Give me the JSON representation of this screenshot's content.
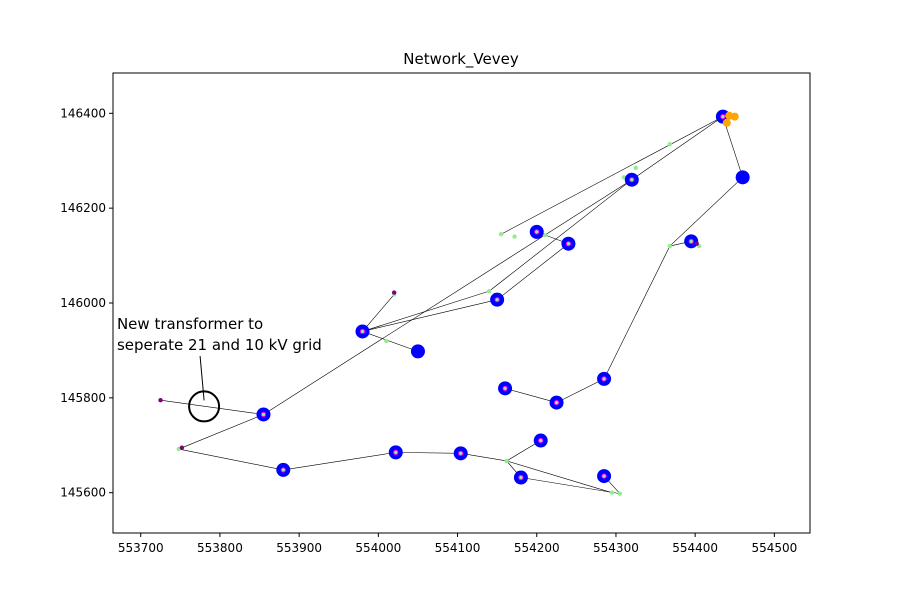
{
  "chart_data": {
    "type": "scatter",
    "title": "Network_Vevey",
    "xlabel": "",
    "ylabel": "",
    "xlim": [
      553665,
      554545
    ],
    "ylim": [
      145515,
      146485
    ],
    "x_ticks": [
      553700,
      553800,
      553900,
      554000,
      554100,
      554200,
      554300,
      554400,
      554500
    ],
    "y_ticks": [
      145600,
      145800,
      146000,
      146200,
      146400
    ],
    "grid": false,
    "legend": "none",
    "colors": {
      "line": "#000000",
      "bus": "#0000ff",
      "bus_center": "#ff00ff",
      "junction": "#90ee90",
      "load": "#800080",
      "ext_grid": "#ffa500",
      "annotation": "#000000"
    },
    "lines": [
      [
        [
          553725,
          145795
        ],
        [
          553855,
          145765
        ]
      ],
      [
        [
          553855,
          145765
        ],
        [
          553748,
          145692
        ]
      ],
      [
        [
          553748,
          145692
        ],
        [
          553880,
          145648
        ]
      ],
      [
        [
          553880,
          145648
        ],
        [
          554022,
          145685
        ]
      ],
      [
        [
          554022,
          145685
        ],
        [
          554104,
          145683
        ]
      ],
      [
        [
          554104,
          145683
        ],
        [
          554162,
          145667
        ]
      ],
      [
        [
          554162,
          145667
        ],
        [
          554180,
          145632
        ]
      ],
      [
        [
          554180,
          145632
        ],
        [
          554305,
          145598
        ]
      ],
      [
        [
          554162,
          145667
        ],
        [
          554205,
          145710
        ]
      ],
      [
        [
          554162,
          145667
        ],
        [
          554295,
          145600
        ]
      ],
      [
        [
          554285,
          145635
        ],
        [
          554305,
          145598
        ]
      ],
      [
        [
          554160,
          145820
        ],
        [
          554225,
          145790
        ]
      ],
      [
        [
          554225,
          145790
        ],
        [
          554285,
          145840
        ]
      ],
      [
        [
          554285,
          145840
        ],
        [
          554368,
          146120
        ]
      ],
      [
        [
          554368,
          146120
        ],
        [
          554395,
          146130
        ]
      ],
      [
        [
          554395,
          146130
        ],
        [
          554405,
          146120
        ]
      ],
      [
        [
          554368,
          146120
        ],
        [
          554460,
          146265
        ]
      ],
      [
        [
          554460,
          146265
        ],
        [
          554435,
          146393
        ]
      ],
      [
        [
          554435,
          146393
        ],
        [
          554320,
          146260
        ]
      ],
      [
        [
          554320,
          146260
        ],
        [
          554140,
          146025
        ]
      ],
      [
        [
          554140,
          146025
        ],
        [
          553980,
          145940
        ]
      ],
      [
        [
          553980,
          145940
        ],
        [
          554020,
          146018
        ]
      ],
      [
        [
          553980,
          145940
        ],
        [
          554050,
          145898
        ]
      ],
      [
        [
          553980,
          145940
        ],
        [
          554150,
          146007
        ]
      ],
      [
        [
          554150,
          146007
        ],
        [
          554240,
          146125
        ]
      ],
      [
        [
          554240,
          146125
        ],
        [
          554200,
          146150
        ]
      ],
      [
        [
          554435,
          146393
        ],
        [
          554155,
          146145
        ]
      ],
      [
        [
          553855,
          145765
        ],
        [
          554320,
          146260
        ]
      ]
    ],
    "buses": [
      {
        "x": 553855,
        "y": 145765,
        "marker": "ring"
      },
      {
        "x": 553880,
        "y": 145648,
        "marker": "ring"
      },
      {
        "x": 554022,
        "y": 145685,
        "marker": "ring"
      },
      {
        "x": 554104,
        "y": 145683,
        "marker": "ring"
      },
      {
        "x": 554180,
        "y": 145632,
        "marker": "ring"
      },
      {
        "x": 554205,
        "y": 145710,
        "marker": "ring"
      },
      {
        "x": 554285,
        "y": 145635,
        "marker": "ring"
      },
      {
        "x": 554160,
        "y": 145820,
        "marker": "ring"
      },
      {
        "x": 554225,
        "y": 145790,
        "marker": "ring"
      },
      {
        "x": 554285,
        "y": 145840,
        "marker": "ring"
      },
      {
        "x": 553980,
        "y": 145940,
        "marker": "ring"
      },
      {
        "x": 554050,
        "y": 145898,
        "marker": "solid"
      },
      {
        "x": 554150,
        "y": 146007,
        "marker": "ring"
      },
      {
        "x": 554200,
        "y": 146150,
        "marker": "ring"
      },
      {
        "x": 554240,
        "y": 146125,
        "marker": "ring"
      },
      {
        "x": 554320,
        "y": 146260,
        "marker": "ring"
      },
      {
        "x": 554395,
        "y": 146130,
        "marker": "ring"
      },
      {
        "x": 554460,
        "y": 146265,
        "marker": "solid"
      },
      {
        "x": 554435,
        "y": 146393,
        "marker": "ring"
      }
    ],
    "junctions": [
      [
        553748,
        145692
      ],
      [
        554162,
        145667
      ],
      [
        554305,
        145598
      ],
      [
        554295,
        145600
      ],
      [
        554140,
        146025
      ],
      [
        554020,
        146018
      ],
      [
        554010,
        145920
      ],
      [
        554368,
        146120
      ],
      [
        554405,
        146120
      ],
      [
        554155,
        146145
      ],
      [
        554310,
        146265
      ],
      [
        554325,
        146285
      ],
      [
        554368,
        146335
      ],
      [
        554185,
        145628
      ],
      [
        554172,
        146140
      ],
      [
        554210,
        146143
      ]
    ],
    "loads": [
      [
        553725,
        145795
      ],
      [
        553752,
        145695
      ],
      [
        554020,
        146022
      ],
      [
        554402,
        146125
      ]
    ],
    "ext_grid": [
      [
        554443,
        146395
      ],
      [
        554450,
        146393
      ],
      [
        554440,
        146380
      ]
    ],
    "annotation": {
      "text_line1": "New transformer to",
      "text_line2": "seperate 21 and 10 kV grid",
      "circle_x": 553780,
      "circle_y": 145782,
      "text_x": 553670,
      "text_y": 145945
    }
  }
}
